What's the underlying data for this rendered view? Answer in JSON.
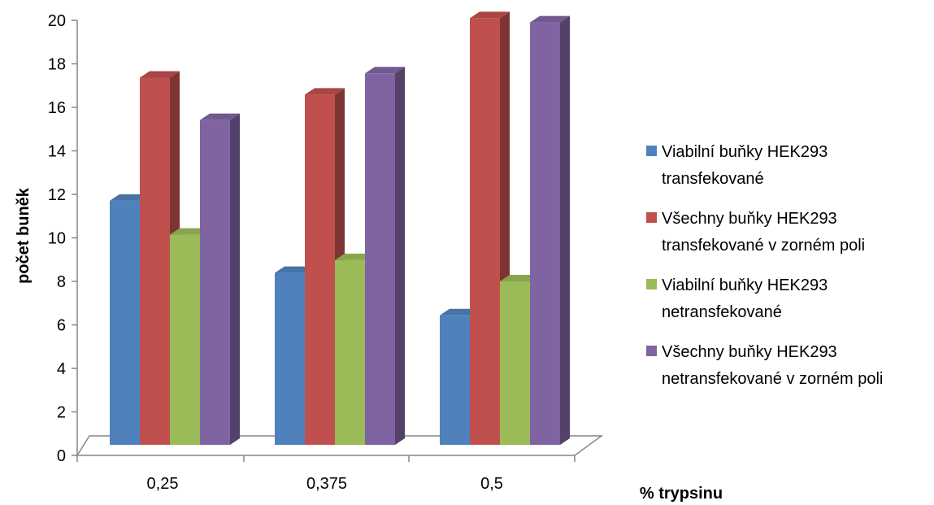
{
  "chart_data": {
    "type": "bar",
    "style": "3d-clustered-column",
    "title": "",
    "xlabel": "% trypsinu",
    "ylabel": "počet buněk",
    "ylim": [
      0,
      20
    ],
    "yticks": [
      "0",
      "2",
      "4",
      "6",
      "8",
      "10",
      "12",
      "14",
      "16",
      "18",
      "20"
    ],
    "categories": [
      "0,25",
      "0,375",
      "0,5"
    ],
    "grid": false,
    "legend_position": "right",
    "series": [
      {
        "name": "Viabilní buňky HEK293 transfekované",
        "legend_lines": [
          "Viabilní buňky HEK293",
          "transfekované"
        ],
        "color": "#4F81BD",
        "values": [
          11.5,
          8.1,
          6.1
        ]
      },
      {
        "name": "Všechny buňky HEK293 transfekované v zorném poli",
        "legend_lines": [
          "Všechny buňky HEK293",
          "transfekované v zorném poli"
        ],
        "color": "#C0504D",
        "values": [
          17.3,
          16.5,
          20.1
        ]
      },
      {
        "name": "Viabilní buňky HEK293 netransfekované",
        "legend_lines": [
          "Viabilní buňky HEK293",
          "netransfekované"
        ],
        "color": "#9BBB59",
        "values": [
          9.9,
          8.7,
          7.7
        ]
      },
      {
        "name": "Všechny buňky HEK293 netransfekované v zorném poli",
        "legend_lines": [
          "Všechny buňky HEK293",
          "netransfekované v zorném poli"
        ],
        "color": "#8064A2",
        "values": [
          15.3,
          17.5,
          19.9
        ]
      }
    ]
  }
}
